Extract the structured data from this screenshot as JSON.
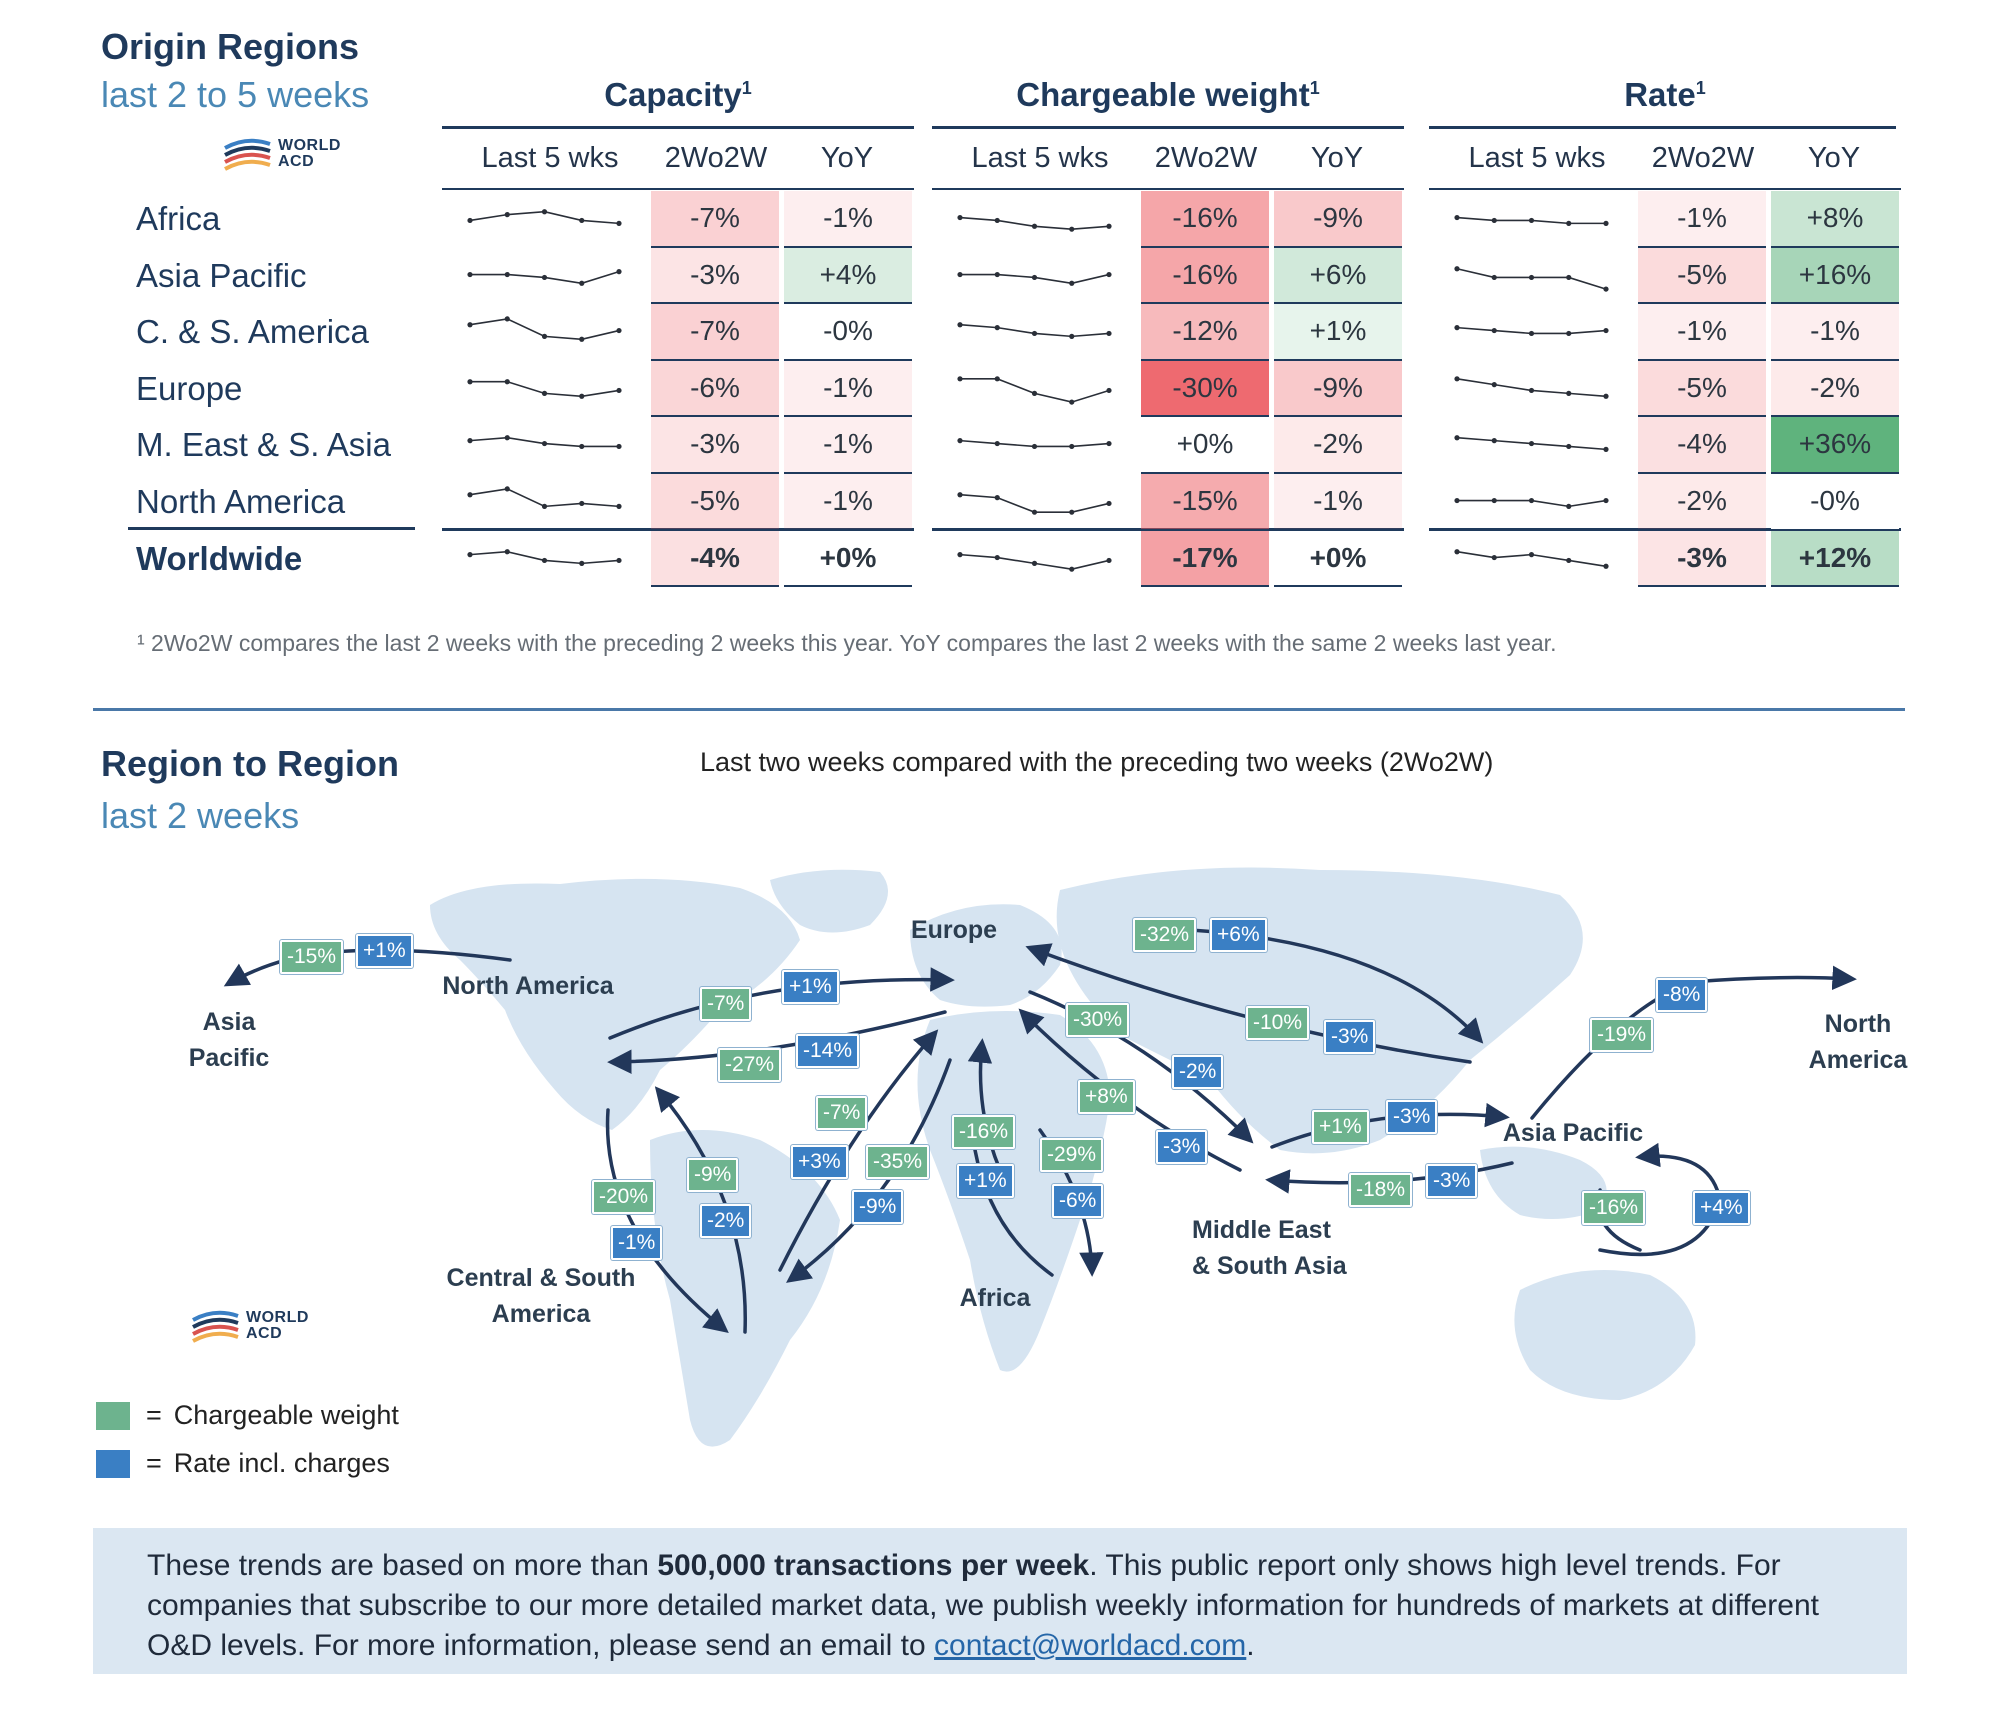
{
  "origin": {
    "title": "Origin Regions",
    "subtitle": "last 2 to 5 weeks",
    "logo_text": [
      "WORLD",
      "ACD"
    ],
    "groups": [
      {
        "title": "Capacity",
        "sup": "1"
      },
      {
        "title": "Chargeable weight",
        "sup": "1"
      },
      {
        "title": "Rate",
        "sup": "1"
      }
    ],
    "col_headers": [
      "Last 5 wks",
      "2Wo2W",
      "YoY"
    ],
    "rows": [
      {
        "label": "Africa",
        "spark": [
          [
            3,
            5,
            6,
            3,
            2
          ],
          [
            4,
            3,
            1,
            0,
            1
          ],
          [
            4,
            3,
            3,
            2,
            2
          ]
        ],
        "cap": [
          "-7%",
          "-1%"
        ],
        "cw": [
          "-16%",
          "-9%"
        ],
        "rate": [
          "-1%",
          "+8%"
        ]
      },
      {
        "label": "Asia Pacific",
        "spark": [
          [
            4,
            4,
            3,
            1,
            5
          ],
          [
            4,
            4,
            3,
            1,
            4
          ],
          [
            6,
            3,
            3,
            3,
            -1
          ]
        ],
        "cap": [
          "-3%",
          "+4%"
        ],
        "cw": [
          "-16%",
          "+6%"
        ],
        "rate": [
          "-5%",
          "+16%"
        ]
      },
      {
        "label": "C. & S. America",
        "spark": [
          [
            6,
            8,
            2,
            1,
            4
          ],
          [
            6,
            5,
            3,
            2,
            3
          ],
          [
            5,
            4,
            3,
            3,
            4
          ]
        ],
        "cap": [
          "-7%",
          "-0%"
        ],
        "cw": [
          "-12%",
          "+1%"
        ],
        "rate": [
          "-1%",
          "-1%"
        ]
      },
      {
        "label": "Europe",
        "spark": [
          [
            6,
            6,
            2,
            1,
            3
          ],
          [
            7,
            7,
            2,
            -1,
            3
          ],
          [
            7,
            5,
            3,
            2,
            1
          ]
        ],
        "cap": [
          "-6%",
          "-1%"
        ],
        "cw": [
          "-30%",
          "-9%"
        ],
        "rate": [
          "-5%",
          "-2%"
        ]
      },
      {
        "label": "M. East & S. Asia",
        "spark": [
          [
            5,
            6,
            4,
            3,
            3
          ],
          [
            5,
            4,
            3,
            3,
            4
          ],
          [
            6,
            5,
            4,
            3,
            2
          ]
        ],
        "cap": [
          "-3%",
          "-1%"
        ],
        "cw": [
          "+0%",
          "-2%"
        ],
        "rate": [
          "-4%",
          "+36%"
        ]
      },
      {
        "label": "North America",
        "spark": [
          [
            6,
            8,
            2,
            3,
            2
          ],
          [
            6,
            5,
            0,
            0,
            3
          ],
          [
            4,
            4,
            4,
            2,
            4
          ]
        ],
        "cap": [
          "-5%",
          "-1%"
        ],
        "cw": [
          "-15%",
          "-1%"
        ],
        "rate": [
          "-2%",
          "-0%"
        ]
      },
      {
        "label": "Worldwide",
        "bold": true,
        "spark": [
          [
            5,
            6,
            3,
            2,
            3
          ],
          [
            5,
            4,
            2,
            0,
            3
          ],
          [
            6,
            4,
            5,
            3,
            1
          ]
        ],
        "cap": [
          "-4%",
          "+0%"
        ],
        "cw": [
          "-17%",
          "+0%"
        ],
        "rate": [
          "-3%",
          "+12%"
        ]
      }
    ],
    "footnote": "¹ 2Wo2W compares the last 2 weeks with the preceding 2 weeks this year. YoY compares the last 2 weeks with the same 2 weeks last year."
  },
  "region": {
    "title": "Region to Region",
    "subtitle": "last 2 weeks",
    "map_subtitle": "Last two weeks compared with the preceding two weeks (2Wo2W)",
    "logo_text": [
      "WORLD",
      "ACD"
    ],
    "labels": {
      "asia_pacific_left": "Asia\nPacific",
      "north_america_mid": "North America",
      "europe": "Europe",
      "north_america_right": "North\nAmerica",
      "asia_pacific_right": "Asia Pacific",
      "middle_east": "Middle East\n& South Asia",
      "central_south": "Central & South\nAmerica",
      "africa": "Africa"
    },
    "badges": [
      {
        "id": "b1",
        "text": "-15%",
        "kind": "green"
      },
      {
        "id": "b2",
        "text": "+1%",
        "kind": "blue"
      },
      {
        "id": "b3",
        "text": "-7%",
        "kind": "green"
      },
      {
        "id": "b4",
        "text": "+1%",
        "kind": "blue"
      },
      {
        "id": "b5",
        "text": "-27%",
        "kind": "green"
      },
      {
        "id": "b6",
        "text": "-14%",
        "kind": "blue"
      },
      {
        "id": "b7",
        "text": "-32%",
        "kind": "green"
      },
      {
        "id": "b8",
        "text": "+6%",
        "kind": "blue"
      },
      {
        "id": "b9",
        "text": "-8%",
        "kind": "blue"
      },
      {
        "id": "b10",
        "text": "-19%",
        "kind": "green"
      },
      {
        "id": "b11",
        "text": "-30%",
        "kind": "green"
      },
      {
        "id": "b12",
        "text": "-10%",
        "kind": "green"
      },
      {
        "id": "b13",
        "text": "-3%",
        "kind": "blue"
      },
      {
        "id": "b14",
        "text": "-2%",
        "kind": "blue"
      },
      {
        "id": "b15",
        "text": "+8%",
        "kind": "green"
      },
      {
        "id": "b16",
        "text": "-3%",
        "kind": "blue"
      },
      {
        "id": "b17",
        "text": "+1%",
        "kind": "green"
      },
      {
        "id": "b18",
        "text": "-3%",
        "kind": "blue"
      },
      {
        "id": "b19",
        "text": "-18%",
        "kind": "green"
      },
      {
        "id": "b20",
        "text": "-3%",
        "kind": "blue"
      },
      {
        "id": "b21",
        "text": "-16%",
        "kind": "green"
      },
      {
        "id": "b22",
        "text": "+4%",
        "kind": "blue"
      },
      {
        "id": "b23",
        "text": "-7%",
        "kind": "green"
      },
      {
        "id": "b24",
        "text": "+3%",
        "kind": "blue"
      },
      {
        "id": "b25",
        "text": "-35%",
        "kind": "green"
      },
      {
        "id": "b26",
        "text": "-9%",
        "kind": "blue"
      },
      {
        "id": "b27",
        "text": "-16%",
        "kind": "green"
      },
      {
        "id": "b28",
        "text": "+1%",
        "kind": "blue"
      },
      {
        "id": "b29",
        "text": "-29%",
        "kind": "green"
      },
      {
        "id": "b30",
        "text": "-6%",
        "kind": "blue"
      },
      {
        "id": "b31",
        "text": "-20%",
        "kind": "green"
      },
      {
        "id": "b32",
        "text": "-1%",
        "kind": "blue"
      },
      {
        "id": "b33",
        "text": "-9%",
        "kind": "green"
      },
      {
        "id": "b34",
        "text": "-2%",
        "kind": "blue"
      }
    ],
    "legend": [
      {
        "label": "Chargeable weight",
        "color": "#6db38e"
      },
      {
        "label": "Rate incl. charges",
        "color": "#3a7fc4"
      }
    ]
  },
  "info": {
    "pre": "These trends are based on more than ",
    "bold": "500,000 transactions per week",
    "mid": ". This public report only shows high level trends. For companies that subscribe to our more detailed market data, we publish weekly information for hundreds of markets at different O&D levels. For more information, please send an email to ",
    "link": "contact@worldacd.com",
    "end": "."
  },
  "colors": {
    "navy": "#1f3a5c",
    "green_badge": "#6db38e",
    "blue_badge": "#3a7fc4",
    "map_land": "#d6e4f1",
    "info_bg": "#dbe7f2"
  }
}
